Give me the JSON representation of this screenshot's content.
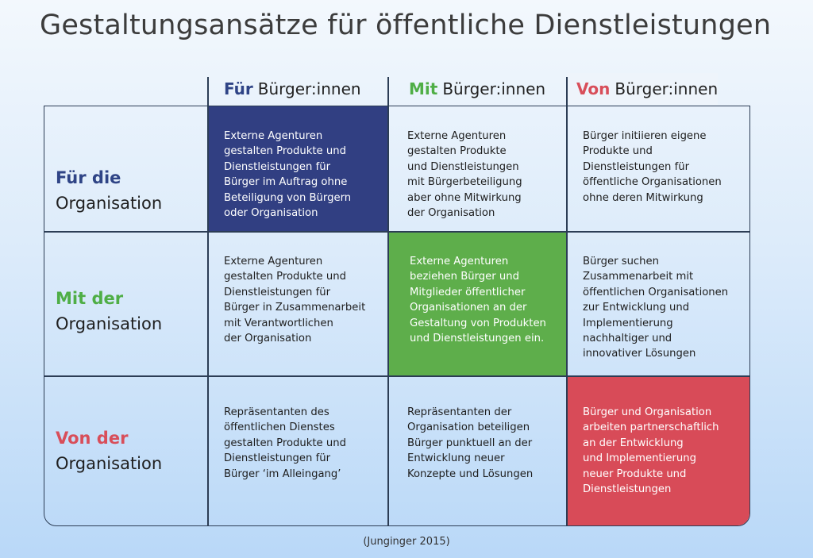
{
  "title": "Gestaltungsansätze für öffentliche Dienstleistungen",
  "columns": [
    {
      "accent": "Für",
      "rest": "Bürger:innen",
      "color": "#2f4486"
    },
    {
      "accent": "Mit",
      "rest": "Bürger:innen",
      "color": "#4fae46"
    },
    {
      "accent": "Von",
      "rest": "Bürger:innen",
      "color": "#d84e5a"
    }
  ],
  "rows": [
    {
      "accent": "Für die",
      "rest": "Organisation",
      "color": "#2f4486"
    },
    {
      "accent": "Mit der",
      "rest": "Organisation",
      "color": "#4fae46"
    },
    {
      "accent": "Von der",
      "rest": "Organisation",
      "color": "#d84e5a"
    }
  ],
  "cells": [
    [
      "Externe Agenturen\ngestalten Produkte und\nDienstleistungen für\nBürger im Auftrag ohne\nBeteiligung von Bürgern\noder Organisation",
      "Externe Agenturen\ngestalten Produkte\nund Dienstleistungen\nmit Bürgerbeteiligung\naber ohne Mitwirkung\nder Organisation",
      "Bürger initiieren eigene\nProdukte und\nDienstleistungen für\nöffentliche Organisationen\nohne deren Mitwirkung"
    ],
    [
      "Externe Agenturen\ngestalten Produkte und\nDienstleistungen für\nBürger in Zusammenarbeit\nmit Verantwortlichen\nder Organisation",
      "Externe Agenturen\nbeziehen Bürger und\nMitglieder öffentlicher\nOrganisationen an der\nGestaltung von Produkten\nund Dienstleistungen ein.",
      "Bürger suchen\nZusammenarbeit mit\nöffentlichen Organisationen\nzur Entwicklung und\nImplementierung\nnachhaltiger und\ninnovativer Lösungen"
    ],
    [
      "Repräsentanten des\nöffentlichen Dienstes\ngestalten Produkte und\nDienstleistungen für\nBürger ‘im Alleingang’",
      "Repräsentanten der\nOrganisation beteiligen\nBürger punktuell an der\nEntwicklung neuer\nKonzepte und Lösungen",
      "Bürger und Organisation\narbeiten partnerschaftlich\nan der Entwicklung\nund Implementierung\nneuer Produkte und\nDienstleistungen"
    ]
  ],
  "highlight_colors": {
    "diag_0": "#313f82",
    "diag_1": "#5eae4b",
    "diag_2": "#d84b58"
  },
  "source": "(Junginger 2015)"
}
